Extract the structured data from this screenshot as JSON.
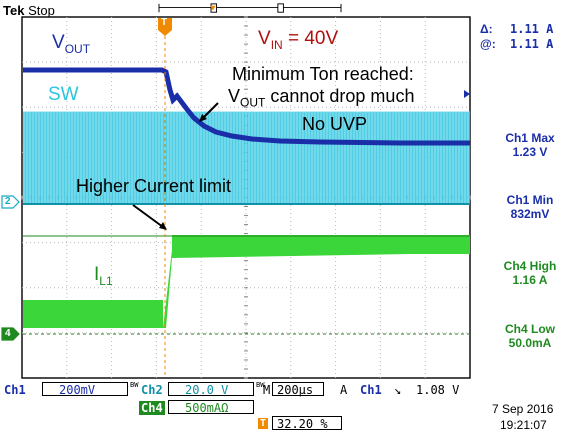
{
  "brand": {
    "name": "Tek",
    "status": "Stop"
  },
  "cursors": {
    "delta_label": "Δ:",
    "delta_value": "1.11 A",
    "at_label": "@:",
    "at_value": "1.11 A"
  },
  "annotations": {
    "vout_prefix": "V",
    "vout_sub": "OUT",
    "vin_prefix": "V",
    "vin_sub": "IN",
    "vin_value": " = 40V",
    "sw": "SW",
    "min_ton_line1": "Minimum Ton reached:",
    "min_ton_line2_prefix": "V",
    "min_ton_line2_sub": "OUT",
    "min_ton_line2_rest": " cannot  drop much",
    "no_uvp": "No UVP",
    "higher_current": "Higher Current limit",
    "il_prefix": "I",
    "il_sub": "L1"
  },
  "markers": {
    "trigger": "T",
    "ch2": "2",
    "ch4": "4"
  },
  "measurements": [
    {
      "name": "Ch1 Max",
      "value": "1.23 V",
      "color": "#1a2ea8"
    },
    {
      "name": "Ch1 Min",
      "value": "832mV",
      "color": "#1a2ea8"
    },
    {
      "name": "Ch4 High",
      "value": "1.16 A",
      "color": "#1f8a1f"
    },
    {
      "name": "Ch4 Low",
      "value": "50.0mA",
      "color": "#1f8a1f"
    }
  ],
  "bottom": {
    "ch1_label": "Ch1",
    "ch1_scale": "200mV",
    "bw1": "BW",
    "ch2_label": "Ch2",
    "ch2_scale": "20.0 V",
    "bw2": "BW",
    "time_label": "M",
    "time_scale": "200µs",
    "acq": "A",
    "trig_source": "Ch1",
    "trig_slope": "↘",
    "trig_level": "1.08 V",
    "ch4_label": "Ch4",
    "ch4_scale": "500mA",
    "ch4_unit": "Ω",
    "trigger_pos": "32.20 %",
    "date": "7 Sep  2016",
    "time": "19:21:07"
  },
  "colors": {
    "ch1": "#1a2ea8",
    "ch2": "#2ec5e0",
    "ch4": "#3ad63a",
    "label_green": "#1f8a1f",
    "vin_red": "#b01010",
    "trigger_orange": "#f08a00",
    "grid": "#b0b0b0"
  }
}
